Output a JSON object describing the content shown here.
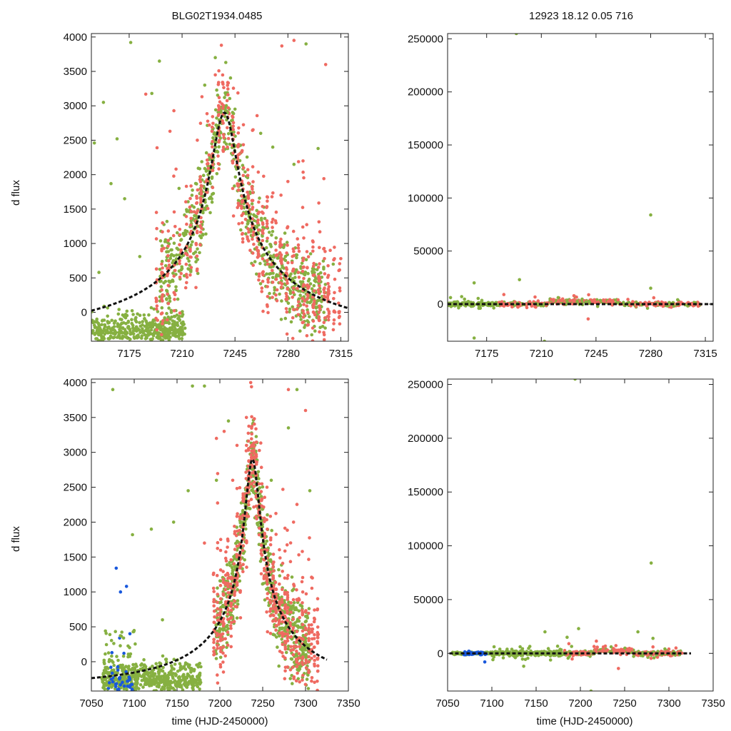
{
  "figure": {
    "title_left": "BLG02T1934.0485",
    "title_right": "12923  18.12  0.05  716",
    "colors": {
      "green": "#86b041",
      "red": "#ef6a61",
      "blue": "#1958dc",
      "model": "#111111"
    }
  },
  "chart_data": [
    {
      "type": "scatter",
      "id": "top-left",
      "title": "BLG02T1934.0485",
      "xlabel": "",
      "ylabel": "d flux",
      "xlim": [
        7150,
        7320
      ],
      "ylim": [
        -420,
        4050
      ],
      "xticks": [
        7175,
        7210,
        7245,
        7280,
        7315
      ],
      "yticks": [
        0,
        500,
        1000,
        1500,
        2000,
        2500,
        3000,
        3500,
        4000
      ],
      "series": [
        {
          "name": "green",
          "values": [
            [
              7152,
              2460
            ],
            [
              7155,
              580
            ],
            [
              7158,
              3050
            ],
            [
              7163,
              1870
            ],
            [
              7167,
              2520
            ],
            [
              7172,
              1650
            ],
            [
              7176,
              3920
            ],
            [
              7182,
              810
            ],
            [
              7190,
              3180
            ],
            [
              7195,
              3650
            ],
            [
              7200,
              1320
            ],
            [
              7208,
              1800
            ],
            [
              7225,
              3300
            ],
            [
              7232,
              3700
            ],
            [
              7240,
              2900
            ],
            [
              7262,
              2600
            ],
            [
              7270,
              2400
            ],
            [
              7278,
              1150
            ],
            [
              7284,
              2150
            ],
            [
              7292,
              3900
            ],
            [
              7300,
              2380
            ],
            [
              7310,
              700
            ]
          ]
        },
        {
          "name": "red",
          "values": [
            [
              7186,
              3170
            ],
            [
              7198,
              930
            ],
            [
              7202,
              2630
            ],
            [
              7206,
              2080
            ],
            [
              7213,
              1280
            ],
            [
              7218,
              1460
            ],
            [
              7222,
              980
            ],
            [
              7226,
              1900
            ],
            [
              7228,
              2720
            ],
            [
              7232,
              3450
            ],
            [
              7236,
              3880
            ],
            [
              7240,
              2400
            ],
            [
              7244,
              1400
            ],
            [
              7248,
              2300
            ],
            [
              7252,
              1350
            ],
            [
              7255,
              900
            ],
            [
              7260,
              800
            ],
            [
              7276,
              3870
            ],
            [
              7280,
              1900
            ],
            [
              7284,
              3950
            ],
            [
              7290,
              2200
            ],
            [
              7305,
              3600
            ],
            [
              7308,
              900
            ],
            [
              7315,
              780
            ]
          ]
        }
      ],
      "model": "microlensing peak ~3030 at 7238"
    },
    {
      "type": "scatter",
      "id": "top-right",
      "title": "12923  18.12  0.05  716",
      "xlabel": "",
      "ylabel": "",
      "xlim": [
        7150,
        7320
      ],
      "ylim": [
        -35000,
        255000
      ],
      "xticks": [
        7175,
        7210,
        7245,
        7280,
        7315
      ],
      "yticks": [
        0,
        50000,
        100000,
        150000,
        200000,
        250000
      ],
      "series": [
        {
          "name": "green",
          "values": [
            [
              7167,
              20000
            ],
            [
              7167,
              -32000
            ],
            [
              7194,
              255000
            ],
            [
              7196,
              23000
            ],
            [
              7212,
              -35000
            ],
            [
              7280,
              84000
            ],
            [
              7280,
              15000
            ]
          ]
        },
        {
          "name": "red",
          "values": [
            [
              7186,
              9000
            ],
            [
              7240,
              -14000
            ],
            [
              7282,
              6000
            ]
          ]
        }
      ],
      "model": "flat ~0"
    },
    {
      "type": "scatter",
      "id": "bottom-left",
      "title": "",
      "xlabel": "time (HJD-2450000)",
      "ylabel": "d flux",
      "xlim": [
        7050,
        7350
      ],
      "ylim": [
        -420,
        4050
      ],
      "xticks": [
        7050,
        7100,
        7150,
        7200,
        7250,
        7300,
        7350
      ],
      "yticks": [
        0,
        500,
        1000,
        1500,
        2000,
        2500,
        3000,
        3500,
        4000
      ],
      "series": [
        {
          "name": "blue",
          "values": [
            [
              7079,
              1340
            ],
            [
              7084,
              1000
            ],
            [
              7091,
              1080
            ],
            [
              7074,
              130
            ],
            [
              7083,
              340
            ],
            [
              7088,
              120
            ],
            [
              7095,
              400
            ],
            [
              7076,
              -230
            ],
            [
              7081,
              -120
            ],
            [
              7092,
              -280
            ],
            [
              7070,
              -380
            ],
            [
              7086,
              -300
            ]
          ]
        },
        {
          "name": "green",
          "values": [
            [
              7075,
              3900
            ],
            [
              7098,
              1820
            ],
            [
              7120,
              1900
            ],
            [
              7133,
              600
            ],
            [
              7146,
              2000
            ],
            [
              7163,
              2450
            ],
            [
              7168,
              3950
            ],
            [
              7182,
              3950
            ],
            [
              7196,
              2600
            ],
            [
              7210,
              3450
            ],
            [
              7260,
              2600
            ],
            [
              7280,
              3350
            ],
            [
              7290,
              3900
            ],
            [
              7305,
              2450
            ]
          ]
        },
        {
          "name": "red",
          "values": [
            [
              7182,
              1700
            ],
            [
              7196,
              3200
            ],
            [
              7205,
              3300
            ],
            [
              7215,
              2600
            ],
            [
              7220,
              3100
            ],
            [
              7231,
              3500
            ],
            [
              7236,
              4000
            ],
            [
              7240,
              2800
            ],
            [
              7246,
              2100
            ],
            [
              7255,
              2500
            ],
            [
              7262,
              1400
            ],
            [
              7280,
              3900
            ],
            [
              7286,
              2000
            ],
            [
              7300,
              3600
            ],
            [
              7308,
              1200
            ]
          ]
        }
      ],
      "model": "microlensing peak ~3030 at 7238"
    },
    {
      "type": "scatter",
      "id": "bottom-right",
      "title": "",
      "xlabel": "time (HJD-2450000)",
      "ylabel": "",
      "xlim": [
        7050,
        7350
      ],
      "ylim": [
        -35000,
        255000
      ],
      "xticks": [
        7050,
        7100,
        7150,
        7200,
        7250,
        7300,
        7350
      ],
      "yticks": [
        0,
        50000,
        100000,
        150000,
        200000,
        250000
      ],
      "series": [
        {
          "name": "blue",
          "values": [
            [
              7074,
              2000
            ],
            [
              7092,
              -8000
            ]
          ]
        },
        {
          "name": "green",
          "values": [
            [
              7136,
              -12000
            ],
            [
              7160,
              20000
            ],
            [
              7185,
              15000
            ],
            [
              7194,
              255000
            ],
            [
              7198,
              23000
            ],
            [
              7212,
              -35000
            ],
            [
              7265,
              20000
            ],
            [
              7280,
              84000
            ],
            [
              7282,
              14000
            ]
          ]
        },
        {
          "name": "red",
          "values": [
            [
              7187,
              9000
            ],
            [
              7243,
              -14000
            ],
            [
              7282,
              6000
            ]
          ]
        }
      ],
      "model": "flat ~0"
    }
  ]
}
